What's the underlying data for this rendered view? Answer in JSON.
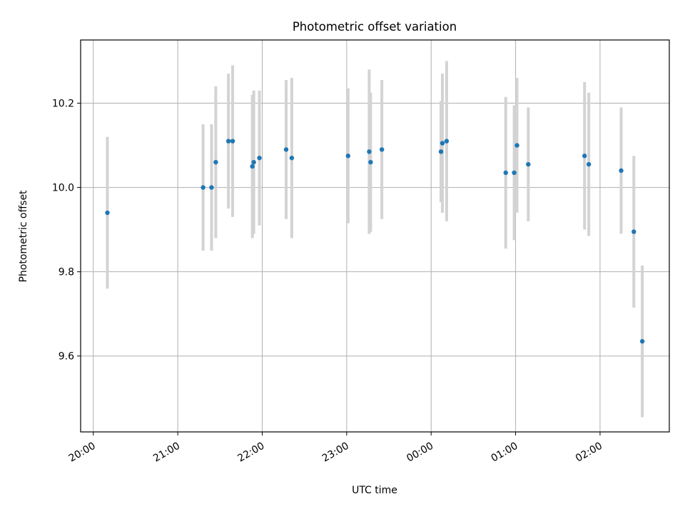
{
  "chart_data": {
    "type": "scatter",
    "title": "Photometric offset variation",
    "xlabel": "UTC time",
    "ylabel": "Photometric offset",
    "x_ticks": [
      "20:00",
      "21:00",
      "22:00",
      "23:00",
      "00:00",
      "01:00",
      "02:00"
    ],
    "x_tick_hours": [
      0,
      1,
      2,
      3,
      4,
      5,
      6
    ],
    "x_range_hours_from_20_00": [
      -0.15,
      6.82
    ],
    "y_ticks": [
      "9.6",
      "9.8",
      "10.0",
      "10.2"
    ],
    "y_tick_values": [
      9.6,
      9.8,
      10.0,
      10.2
    ],
    "ylim": [
      9.42,
      10.35
    ],
    "grid": true,
    "points": [
      {
        "time": "20:10",
        "y": 9.94,
        "yerr": 0.18
      },
      {
        "time": "21:18",
        "y": 10.0,
        "yerr": 0.15
      },
      {
        "time": "21:24",
        "y": 10.0,
        "yerr": 0.15
      },
      {
        "time": "21:27",
        "y": 10.06,
        "yerr": 0.18
      },
      {
        "time": "21:36",
        "y": 10.11,
        "yerr": 0.16
      },
      {
        "time": "21:39",
        "y": 10.11,
        "yerr": 0.18
      },
      {
        "time": "21:53",
        "y": 10.05,
        "yerr": 0.17
      },
      {
        "time": "21:54",
        "y": 10.06,
        "yerr": 0.17
      },
      {
        "time": "21:58",
        "y": 10.07,
        "yerr": 0.16
      },
      {
        "time": "22:17",
        "y": 10.09,
        "yerr": 0.165
      },
      {
        "time": "22:21",
        "y": 10.07,
        "yerr": 0.19
      },
      {
        "time": "23:01",
        "y": 10.075,
        "yerr": 0.16
      },
      {
        "time": "23:16",
        "y": 10.085,
        "yerr": 0.195
      },
      {
        "time": "23:17",
        "y": 10.06,
        "yerr": 0.165
      },
      {
        "time": "23:25",
        "y": 10.09,
        "yerr": 0.165
      },
      {
        "time": "00:07",
        "y": 10.085,
        "yerr": 0.12
      },
      {
        "time": "00:08",
        "y": 10.105,
        "yerr": 0.165
      },
      {
        "time": "00:11",
        "y": 10.11,
        "yerr": 0.19
      },
      {
        "time": "00:53",
        "y": 10.035,
        "yerr": 0.18
      },
      {
        "time": "00:59",
        "y": 10.035,
        "yerr": 0.16
      },
      {
        "time": "01:01",
        "y": 10.1,
        "yerr": 0.16
      },
      {
        "time": "01:09",
        "y": 10.055,
        "yerr": 0.135
      },
      {
        "time": "01:49",
        "y": 10.075,
        "yerr": 0.175
      },
      {
        "time": "01:52",
        "y": 10.055,
        "yerr": 0.17
      },
      {
        "time": "02:15",
        "y": 10.04,
        "yerr": 0.15
      },
      {
        "time": "02:24",
        "y": 9.895,
        "yerr": 0.18
      },
      {
        "time": "02:30",
        "y": 9.635,
        "yerr": 0.18
      }
    ]
  }
}
